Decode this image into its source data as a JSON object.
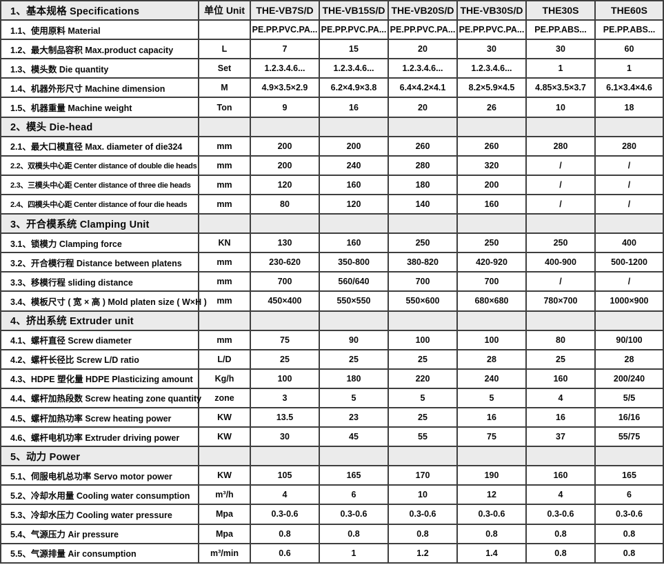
{
  "header": {
    "section_label": "1、基本规格 Specifications",
    "unit_label": "单位 Unit",
    "models": [
      "THE-VB7S/D",
      "THE-VB15S/D",
      "THE-VB20S/D",
      "THE-VB30S/D",
      "THE30S",
      "THE60S"
    ]
  },
  "colors": {
    "header_bg": "#ebebeb",
    "row_bg": "#ffffff",
    "border": "#3e3e3e",
    "text": "#0a0a0a"
  },
  "sections": [
    {
      "title": "",
      "rows": [
        {
          "label": "1.1、使用原料 Material",
          "unit": "",
          "values": [
            "PE.PP.PVC.PA...",
            "PE.PP.PVC.PA...",
            "PE.PP.PVC.PA...",
            "PE.PP.PVC.PA...",
            "PE.PP.ABS...",
            "PE.PP.ABS..."
          ]
        },
        {
          "label": "1.2、最大制品容积 Max.product capacity",
          "unit": "L",
          "values": [
            "7",
            "15",
            "20",
            "30",
            "30",
            "60"
          ]
        },
        {
          "label": "1.3、模头数 Die quantity",
          "unit": "Set",
          "values": [
            "1.2.3.4.6...",
            "1.2.3.4.6...",
            "1.2.3.4.6...",
            "1.2.3.4.6...",
            "1",
            "1"
          ]
        },
        {
          "label": "1.4、机器外形尺寸 Machine dimension",
          "unit": "M",
          "values": [
            "4.9×3.5×2.9",
            "6.2×4.9×3.8",
            "6.4×4.2×4.1",
            "8.2×5.9×4.5",
            "4.85×3.5×3.7",
            "6.1×3.4×4.6"
          ]
        },
        {
          "label": "1.5、机器重量 Machine weight",
          "unit": "Ton",
          "values": [
            "9",
            "16",
            "20",
            "26",
            "10",
            "18"
          ]
        }
      ]
    },
    {
      "title": "2、模头 Die-head",
      "rows": [
        {
          "label": "2.1、最大口模直径 Max. diameter of die324",
          "unit": "mm",
          "values": [
            "200",
            "200",
            "260",
            "260",
            "280",
            "280"
          ]
        },
        {
          "label": "2.2、双模头中心距 Center distance of double die heads",
          "unit": "mm",
          "values": [
            "200",
            "240",
            "280",
            "320",
            "/",
            "/"
          ],
          "condensed": true
        },
        {
          "label": "2.3、三模头中心距 Center distance of three die heads",
          "unit": "mm",
          "values": [
            "120",
            "160",
            "180",
            "200",
            "/",
            "/"
          ],
          "condensed": true
        },
        {
          "label": "2.4、四模头中心距  Center distance of four die heads",
          "unit": "mm",
          "values": [
            "80",
            "120",
            "140",
            "160",
            "/",
            "/"
          ],
          "condensed": true
        }
      ]
    },
    {
      "title": "3、开合模系统 Clamping Unit",
      "rows": [
        {
          "label": "3.1、锁模力 Clamping force",
          "unit": "KN",
          "values": [
            "130",
            "160",
            "250",
            "250",
            "250",
            "400"
          ]
        },
        {
          "label": "3.2、开合模行程 Distance between platens",
          "unit": "mm",
          "values": [
            "230-620",
            "350-800",
            "380-820",
            "420-920",
            "400-900",
            "500-1200"
          ]
        },
        {
          "label": "3.3、移模行程 sliding distance",
          "unit": "mm",
          "values": [
            "700",
            "560/640",
            "700",
            "700",
            "/",
            "/"
          ]
        },
        {
          "label": "3.4、模板尺寸 ( 宽 × 高 ) Mold platen size ( W×H )",
          "unit": "mm",
          "values": [
            "450×400",
            "550×550",
            "550×600",
            "680×680",
            "780×700",
            "1000×900"
          ]
        }
      ]
    },
    {
      "title": "4、挤出系统 Extruder unit",
      "rows": [
        {
          "label": "4.1、螺杆直径 Screw diameter",
          "unit": "mm",
          "values": [
            "75",
            "90",
            "100",
            "100",
            "80",
            "90/100"
          ]
        },
        {
          "label": "4.2、螺杆长径比 Screw L/D ratio",
          "unit": "L/D",
          "values": [
            "25",
            "25",
            "25",
            "28",
            "25",
            "28"
          ]
        },
        {
          "label": "4.3、HDPE 塑化量 HDPE Plasticizing amount",
          "unit": "Kg/h",
          "values": [
            "100",
            "180",
            "220",
            "240",
            "160",
            "200/240"
          ]
        },
        {
          "label": "4.4、螺杆加热段数 Screw heating zone quantity",
          "unit": "zone",
          "values": [
            "3",
            "5",
            "5",
            "5",
            "4",
            "5/5"
          ]
        },
        {
          "label": "4.5、螺杆加热功率 Screw heating power",
          "unit": "KW",
          "values": [
            "13.5",
            "23",
            "25",
            "16",
            "16",
            "16/16"
          ]
        },
        {
          "label": "4.6、螺杆电机功率 Extruder driving power",
          "unit": "KW",
          "values": [
            "30",
            "45",
            "55",
            "75",
            "37",
            "55/75"
          ]
        }
      ]
    },
    {
      "title": "5、动力 Power",
      "rows": [
        {
          "label": "5.1、伺服电机总功率 Servo  motor power",
          "unit": "KW",
          "values": [
            "105",
            "165",
            "170",
            "190",
            "160",
            "165"
          ]
        },
        {
          "label": "5.2、冷却水用量 Cooling water consumption",
          "unit": "m³/h",
          "values": [
            "4",
            "6",
            "10",
            "12",
            "4",
            "6"
          ]
        },
        {
          "label": "5.3、冷却水压力 Cooling water pressure",
          "unit": "Mpa",
          "values": [
            "0.3-0.6",
            "0.3-0.6",
            "0.3-0.6",
            "0.3-0.6",
            "0.3-0.6",
            "0.3-0.6"
          ]
        },
        {
          "label": "5.4、气源压力 Air pressure",
          "unit": "Mpa",
          "values": [
            "0.8",
            "0.8",
            "0.8",
            "0.8",
            "0.8",
            "0.8"
          ]
        },
        {
          "label": "5.5、气源排量 Air consumption",
          "unit": "m³/min",
          "values": [
            "0.6",
            "1",
            "1.2",
            "1.4",
            "0.8",
            "0.8"
          ]
        }
      ]
    }
  ]
}
